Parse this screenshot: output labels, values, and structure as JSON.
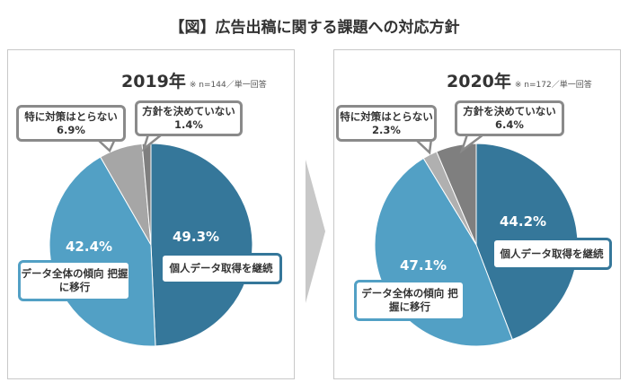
{
  "title": "【図】広告出稿に関する課題への対応方針",
  "colors": {
    "continue": "#35779a",
    "shift": "#52a0c5",
    "none": "#a6a6a6",
    "undecided": "#7f7f7f"
  },
  "chart_data": [
    {
      "type": "pie",
      "title": "2019年",
      "note": "※ n=144／単一回答",
      "slices": [
        {
          "label": "個人データ取得を継続",
          "value": 49.3,
          "display": "49.3%"
        },
        {
          "label": "データ全体の傾向 把握に移行",
          "value": 42.4,
          "display": "42.4%"
        },
        {
          "label": "特に対策はとらない",
          "value": 6.9,
          "display": "6.9%"
        },
        {
          "label": "方針を決めていない",
          "value": 1.4,
          "display": "1.4%"
        }
      ]
    },
    {
      "type": "pie",
      "title": "2020年",
      "note": "※ n=172／単一回答",
      "slices": [
        {
          "label": "個人データ取得を継続",
          "value": 44.2,
          "display": "44.2%"
        },
        {
          "label": "データ全体の傾向 把握に移行",
          "value": 47.1,
          "display": "47.1%"
        },
        {
          "label": "特に対策はとらない",
          "value": 2.3,
          "display": "2.3%"
        },
        {
          "label": "方針を決めていない",
          "value": 6.4,
          "display": "6.4%"
        }
      ]
    }
  ]
}
